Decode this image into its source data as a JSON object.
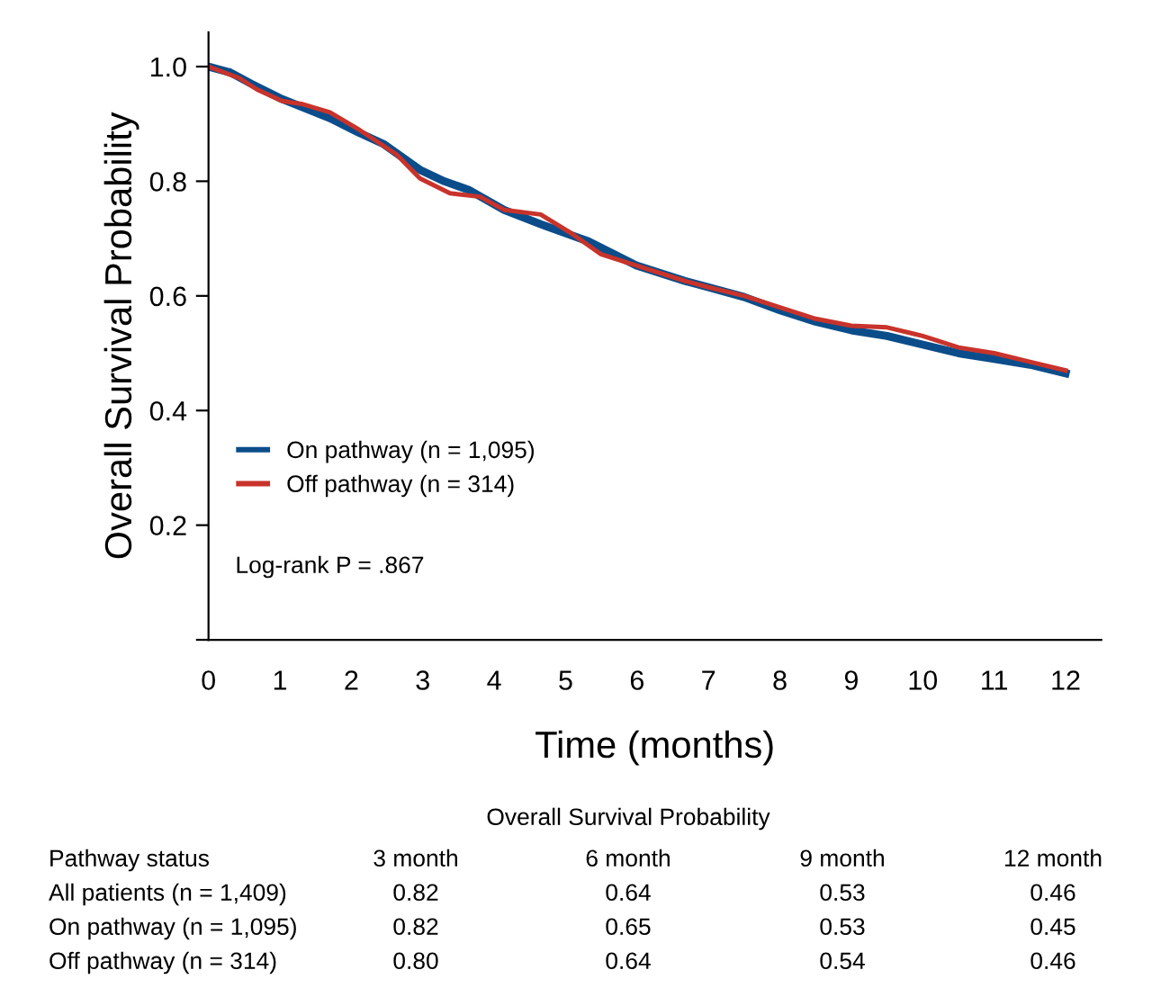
{
  "chart_data": {
    "type": "line",
    "xlabel": "Time (months)",
    "ylabel": "Overall Survival Probability",
    "xlim": [
      0,
      12.5
    ],
    "ylim": [
      0,
      1.06
    ],
    "xticks": [
      0,
      1,
      2,
      3,
      4,
      5,
      6,
      7,
      8,
      9,
      10,
      11,
      12
    ],
    "yticks": [
      {
        "value": 0,
        "label": null
      },
      0.2,
      0.4,
      0.6,
      0.8,
      {
        "value": 1,
        "label": "1.0"
      }
    ],
    "grid": false,
    "legend": "bottom left",
    "series": [
      {
        "name": "On pathway (n = 1,095)",
        "color": "#0b4d8a",
        "x": [
          0,
          0.3,
          0.6,
          1.0,
          1.3,
          1.7,
          2.1,
          2.45,
          2.96,
          3.3,
          3.64,
          4.14,
          4.65,
          5.32,
          5.99,
          6.67,
          7.0,
          7.5,
          8.0,
          8.5,
          9.0,
          9.5,
          10.0,
          10.5,
          11.0,
          11.5,
          12.0
        ],
        "values": [
          1.0,
          0.99,
          0.97,
          0.945,
          0.93,
          0.91,
          0.885,
          0.865,
          0.82,
          0.8,
          0.785,
          0.75,
          0.725,
          0.695,
          0.653,
          0.626,
          0.615,
          0.598,
          0.575,
          0.555,
          0.54,
          0.53,
          0.515,
          0.5,
          0.49,
          0.48,
          0.465
        ]
      },
      {
        "name": "Off pathway (n = 314)",
        "color": "#c8332b",
        "x": [
          0,
          0.43,
          0.68,
          1.03,
          1.3,
          1.7,
          2.12,
          2.63,
          2.96,
          3.38,
          3.8,
          4.14,
          4.65,
          5.07,
          5.49,
          5.99,
          6.67,
          7.0,
          7.5,
          8.0,
          8.5,
          9.0,
          9.5,
          10.0,
          10.5,
          11.0,
          11.5,
          12.0
        ],
        "values": [
          1.0,
          0.98,
          0.96,
          0.94,
          0.935,
          0.92,
          0.889,
          0.847,
          0.805,
          0.779,
          0.773,
          0.75,
          0.742,
          0.71,
          0.673,
          0.653,
          0.626,
          0.615,
          0.6,
          0.58,
          0.56,
          0.548,
          0.545,
          0.53,
          0.51,
          0.5,
          0.485,
          0.47
        ]
      }
    ],
    "annotations": [
      "Log-rank P = .867",
      "Overall Survival Probability",
      "Pathway status",
      "3 month",
      "6 month",
      "9 month",
      "12 month",
      "All patients (n = 1,409)",
      "0.82",
      "0.64",
      "0.53",
      "0.46",
      "On pathway (n = 1,095)",
      "0.82",
      "0.65",
      "0.53",
      "0.45",
      "Off pathway (n = 314)",
      "0.80",
      "0.64",
      "0.54",
      "0.46"
    ]
  }
}
